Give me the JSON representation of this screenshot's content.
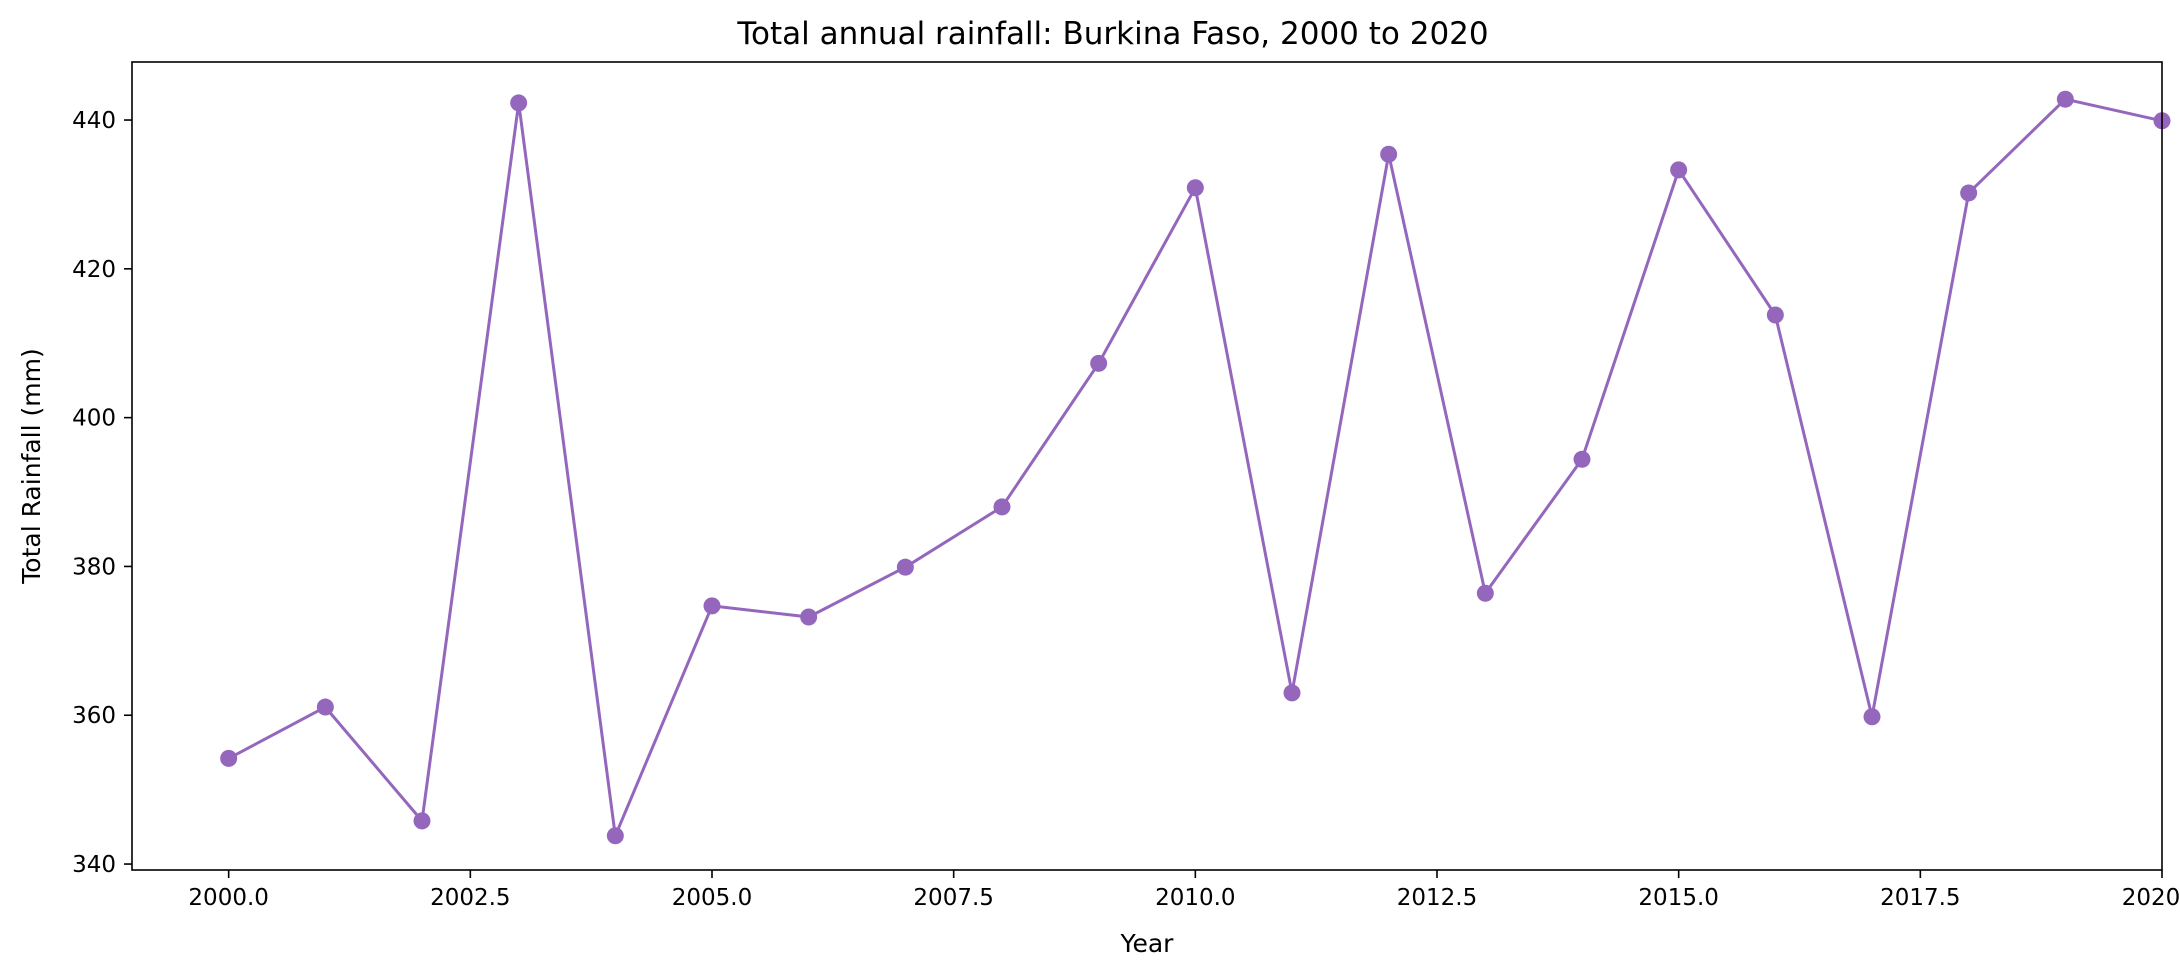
{
  "chart_data": {
    "type": "line",
    "title": "Total annual rainfall: Burkina Faso, 2000 to 2020",
    "xlabel": "Year",
    "ylabel": "Total Rainfall (mm)",
    "xlim": [
      1999.0,
      2020.0
    ],
    "ylim": [
      339.2,
      447.8
    ],
    "x_ticks": [
      2000.0,
      2002.5,
      2005.0,
      2007.5,
      2010.0,
      2012.5,
      2015.0,
      2017.5,
      2020.0
    ],
    "x_tick_labels": [
      "2000.0",
      "2002.5",
      "2005.0",
      "2007.5",
      "2010.0",
      "2012.5",
      "2015.0",
      "2017.5",
      "2020.0"
    ],
    "y_ticks": [
      340,
      360,
      380,
      400,
      420,
      440
    ],
    "y_tick_labels": [
      "340",
      "360",
      "380",
      "400",
      "420",
      "440"
    ],
    "grid": false,
    "legend": false,
    "series": [
      {
        "color": "#9467bd",
        "x": [
          2000,
          2001,
          2002,
          2003,
          2004,
          2005,
          2006,
          2007,
          2008,
          2009,
          2010,
          2011,
          2012,
          2013,
          2014,
          2015,
          2016,
          2017,
          2018,
          2019,
          2020
        ],
        "y": [
          354.2,
          361.1,
          345.8,
          442.3,
          343.8,
          374.7,
          373.2,
          379.9,
          388.0,
          407.3,
          430.9,
          363.0,
          435.4,
          376.4,
          394.4,
          433.3,
          413.8,
          359.8,
          430.2,
          442.8,
          439.9
        ]
      }
    ]
  }
}
